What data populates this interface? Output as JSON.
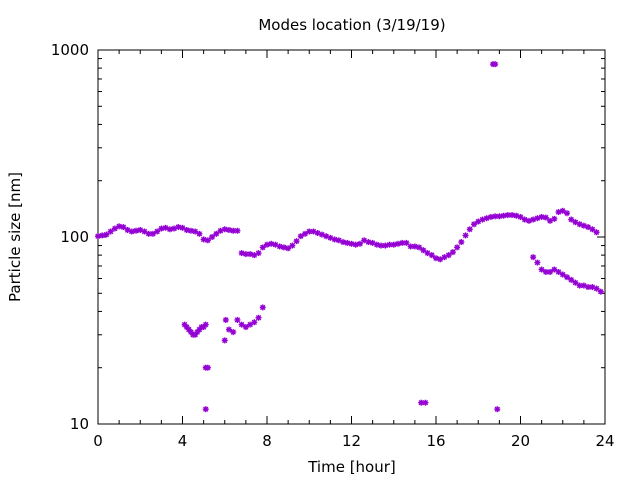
{
  "chart_data": {
    "type": "scatter",
    "title": "Modes location (3/19/19)",
    "xlabel": "Time [hour]",
    "ylabel": "Particle size [nm]",
    "xlim": [
      0,
      24
    ],
    "ylim": [
      10,
      1000
    ],
    "yscale": "log",
    "x_ticks": [
      0,
      4,
      8,
      12,
      16,
      20,
      24
    ],
    "x_tick_labels": [
      "0",
      "4",
      "8",
      "12",
      "16",
      "20",
      "24"
    ],
    "y_ticks": [
      10,
      100,
      1000
    ],
    "y_tick_labels": [
      "10",
      "100",
      "1000"
    ],
    "grid": false,
    "legend": "none",
    "marker_color": "#9400d3",
    "series": [
      {
        "x": [
          0.0,
          0.2,
          0.4,
          0.6,
          0.8,
          1.0,
          1.2,
          1.4,
          1.6,
          1.8,
          2.0,
          2.2,
          2.4,
          2.6,
          2.8,
          3.0,
          3.2,
          3.4,
          3.6,
          3.8,
          4.0,
          4.2,
          4.4,
          4.6,
          4.8,
          5.0,
          5.2,
          5.4,
          5.6,
          5.8,
          6.0,
          6.2,
          6.4,
          6.6,
          6.8,
          7.0,
          7.2,
          7.4,
          7.6,
          7.8,
          8.0,
          8.2,
          8.4,
          8.6,
          8.8,
          9.0,
          9.2,
          9.4,
          9.6,
          9.8,
          10.0,
          10.2,
          10.4,
          10.6,
          10.8,
          11.0,
          11.2,
          11.4,
          11.6,
          11.8,
          12.0,
          12.2,
          12.4,
          12.6,
          12.8,
          13.0,
          13.2,
          13.4,
          13.6,
          13.8,
          14.0,
          14.2,
          14.4,
          14.6,
          14.8,
          15.0,
          15.2,
          15.4,
          15.6,
          15.8,
          16.0,
          16.2,
          16.4,
          16.6,
          16.8,
          17.0,
          17.2,
          17.4,
          17.6,
          17.8,
          18.0,
          18.2,
          18.4,
          18.6,
          18.8,
          19.0,
          19.2,
          19.4,
          19.6,
          19.8,
          20.0,
          20.2,
          20.4,
          20.6,
          20.8,
          21.0,
          21.2,
          21.4,
          21.6,
          21.8,
          22.0,
          22.2,
          22.4,
          22.6,
          22.8,
          23.0,
          23.2,
          23.4,
          23.6
        ],
        "y": [
          101,
          102,
          103,
          107,
          111,
          114,
          113,
          109,
          107,
          108,
          109,
          107,
          104,
          104,
          107,
          111,
          112,
          110,
          111,
          113,
          112,
          109,
          108,
          107,
          104,
          97,
          96,
          100,
          104,
          108,
          110,
          109,
          108,
          108,
          82,
          81,
          81,
          80,
          82,
          88,
          91,
          92,
          91,
          89,
          88,
          87,
          90,
          95,
          101,
          104,
          107,
          107,
          105,
          103,
          101,
          99,
          97,
          96,
          94,
          93,
          92,
          91,
          92,
          96,
          94,
          93,
          91,
          90,
          90,
          91,
          91,
          92,
          93,
          93,
          89,
          89,
          88,
          85,
          82,
          80,
          77,
          76,
          78,
          80,
          83,
          88,
          94,
          102,
          110,
          117,
          121,
          124,
          126,
          128,
          129,
          129,
          130,
          131,
          131,
          130,
          128,
          124,
          122,
          124,
          126,
          128,
          127,
          122,
          125,
          136,
          138,
          134,
          124,
          120,
          117,
          115,
          113,
          110,
          106
        ]
      },
      {
        "x": [
          20.6,
          20.8,
          21.0,
          21.2,
          21.4,
          21.6,
          21.8,
          22.0,
          22.2,
          22.4,
          22.6,
          22.8,
          23.0,
          23.2,
          23.4,
          23.6,
          23.8
        ],
        "y": [
          78,
          73,
          67,
          65,
          65,
          67,
          65,
          63,
          61,
          59,
          57,
          55,
          55,
          54,
          54,
          53,
          51
        ]
      },
      {
        "x": [
          4.1,
          4.2,
          4.3,
          4.4,
          4.5,
          4.6,
          4.7,
          4.8,
          4.9,
          5.0,
          5.1,
          5.1,
          5.2,
          5.1,
          6.0,
          6.05,
          6.2,
          6.4,
          6.6,
          6.8,
          7.0,
          7.2,
          7.4,
          7.6,
          7.8,
          15.3,
          15.5,
          18.7,
          18.8,
          18.9
        ],
        "y": [
          34,
          33,
          32,
          31,
          30,
          30,
          31,
          32,
          33,
          33,
          34,
          20,
          20,
          12,
          28,
          36,
          32,
          31,
          36,
          34,
          33,
          34,
          35,
          37,
          42,
          13,
          13,
          840,
          840,
          12
        ]
      }
    ]
  }
}
